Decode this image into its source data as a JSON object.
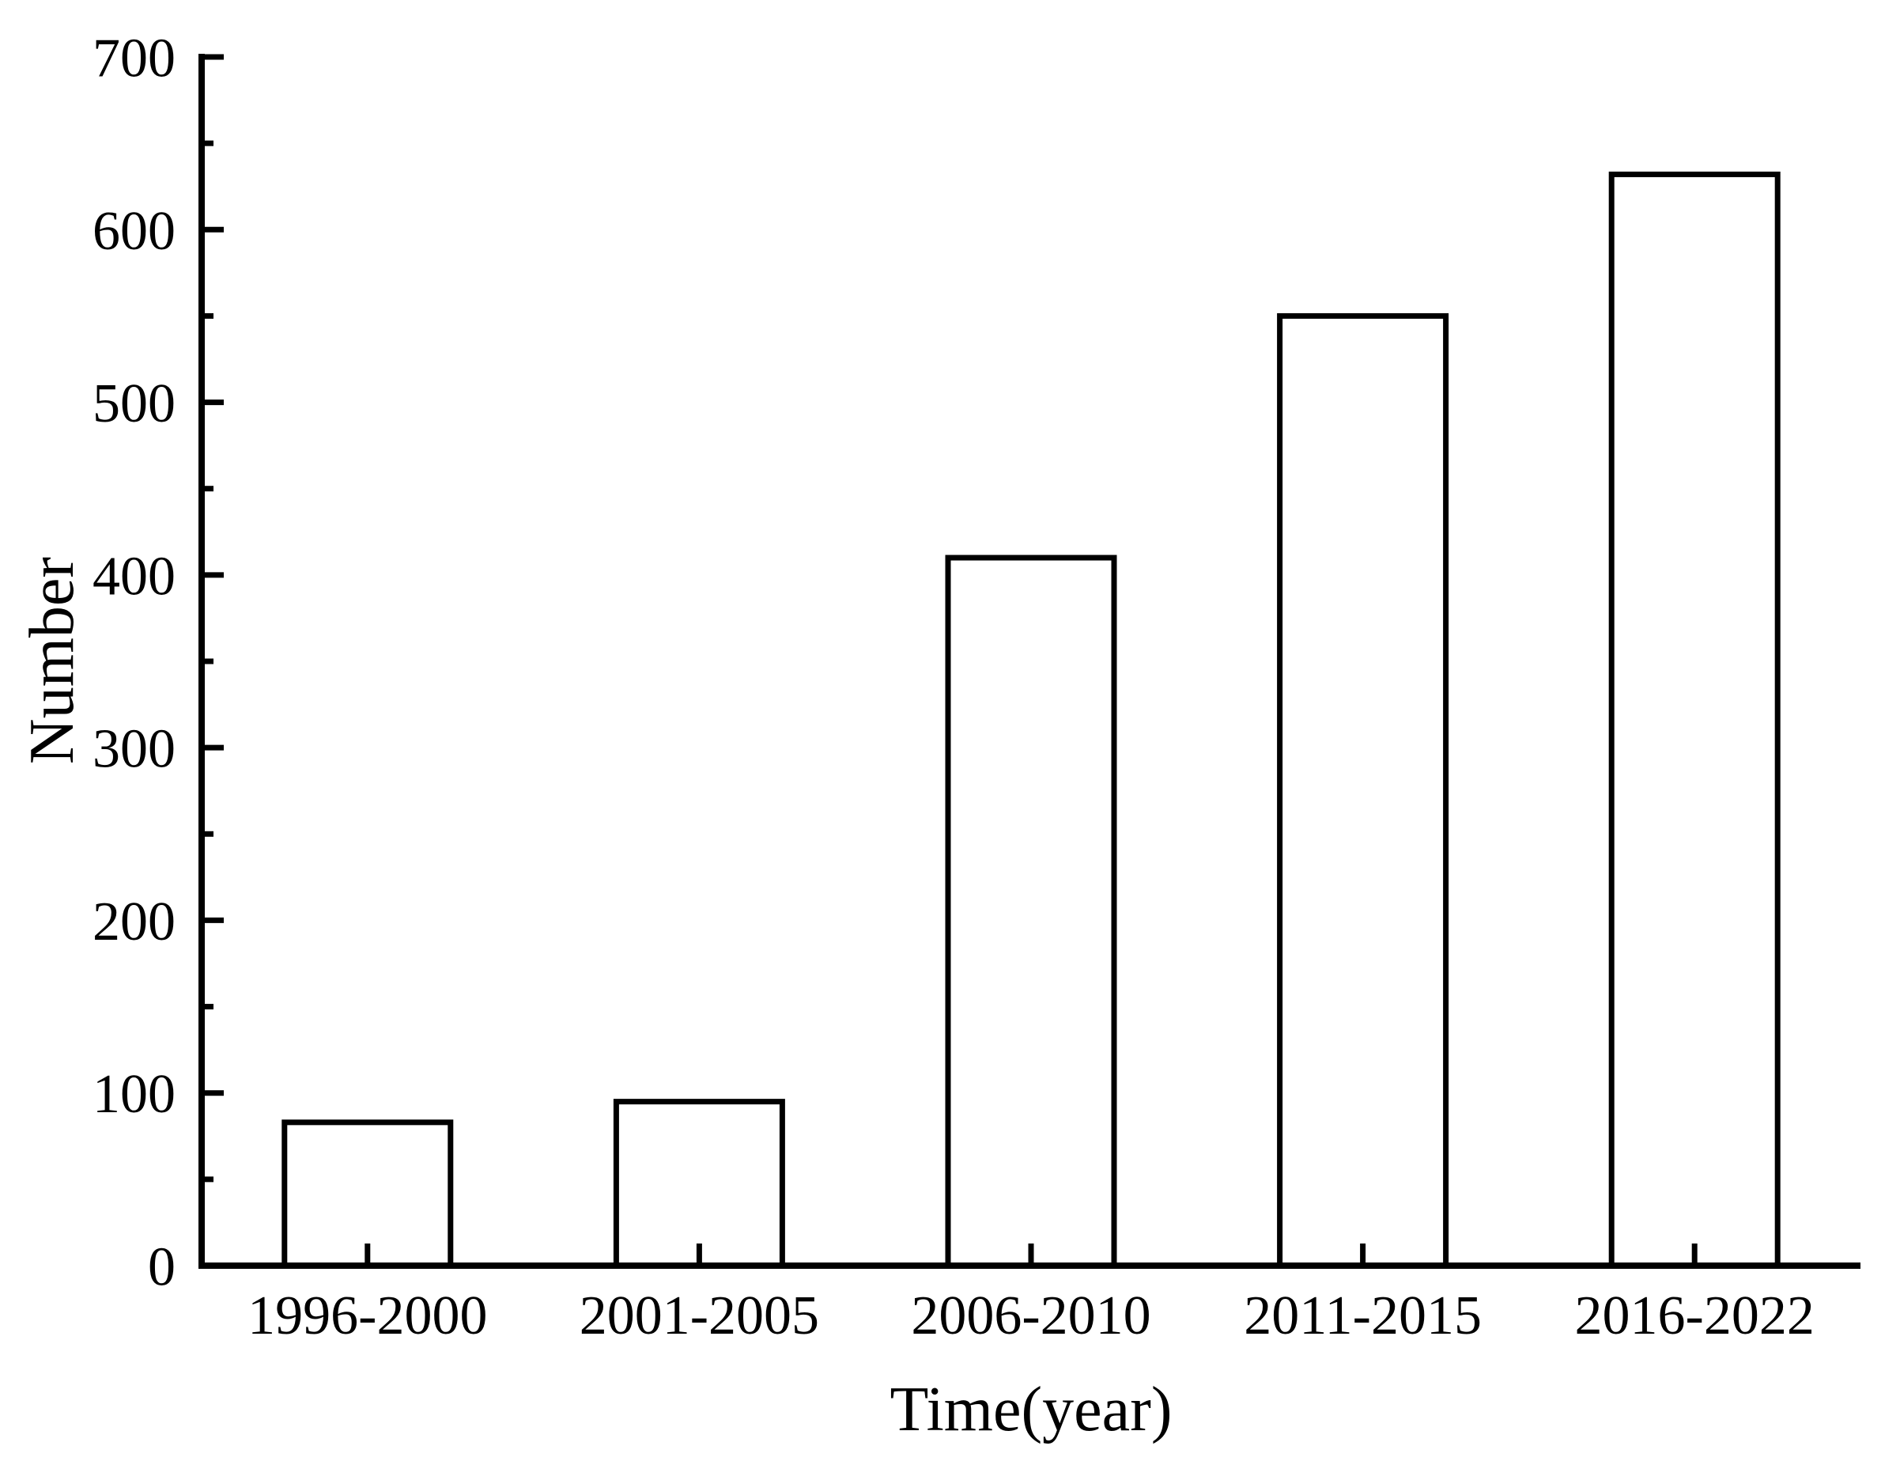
{
  "figure": {
    "background": "#ffffff",
    "line_color": "#000000",
    "text_color": "#000000"
  },
  "chart_data": {
    "type": "bar",
    "title": "",
    "xlabel": "Time(year)",
    "ylabel": "Number",
    "categories": [
      "1996-2000",
      "2001-2005",
      "2006-2010",
      "2011-2015",
      "2016-2022"
    ],
    "values": [
      83,
      95,
      410,
      550,
      632
    ],
    "ylim": [
      0,
      700
    ],
    "yticks": [
      0,
      100,
      200,
      300,
      400,
      500,
      600,
      700
    ],
    "ytick_major_step": 100,
    "ytick_minor_step": 50,
    "bar_fill": "#ffffff",
    "bar_stroke": "#000000",
    "grid": false,
    "legend": "none",
    "tick_direction": "in",
    "frame": "left-bottom-only"
  }
}
